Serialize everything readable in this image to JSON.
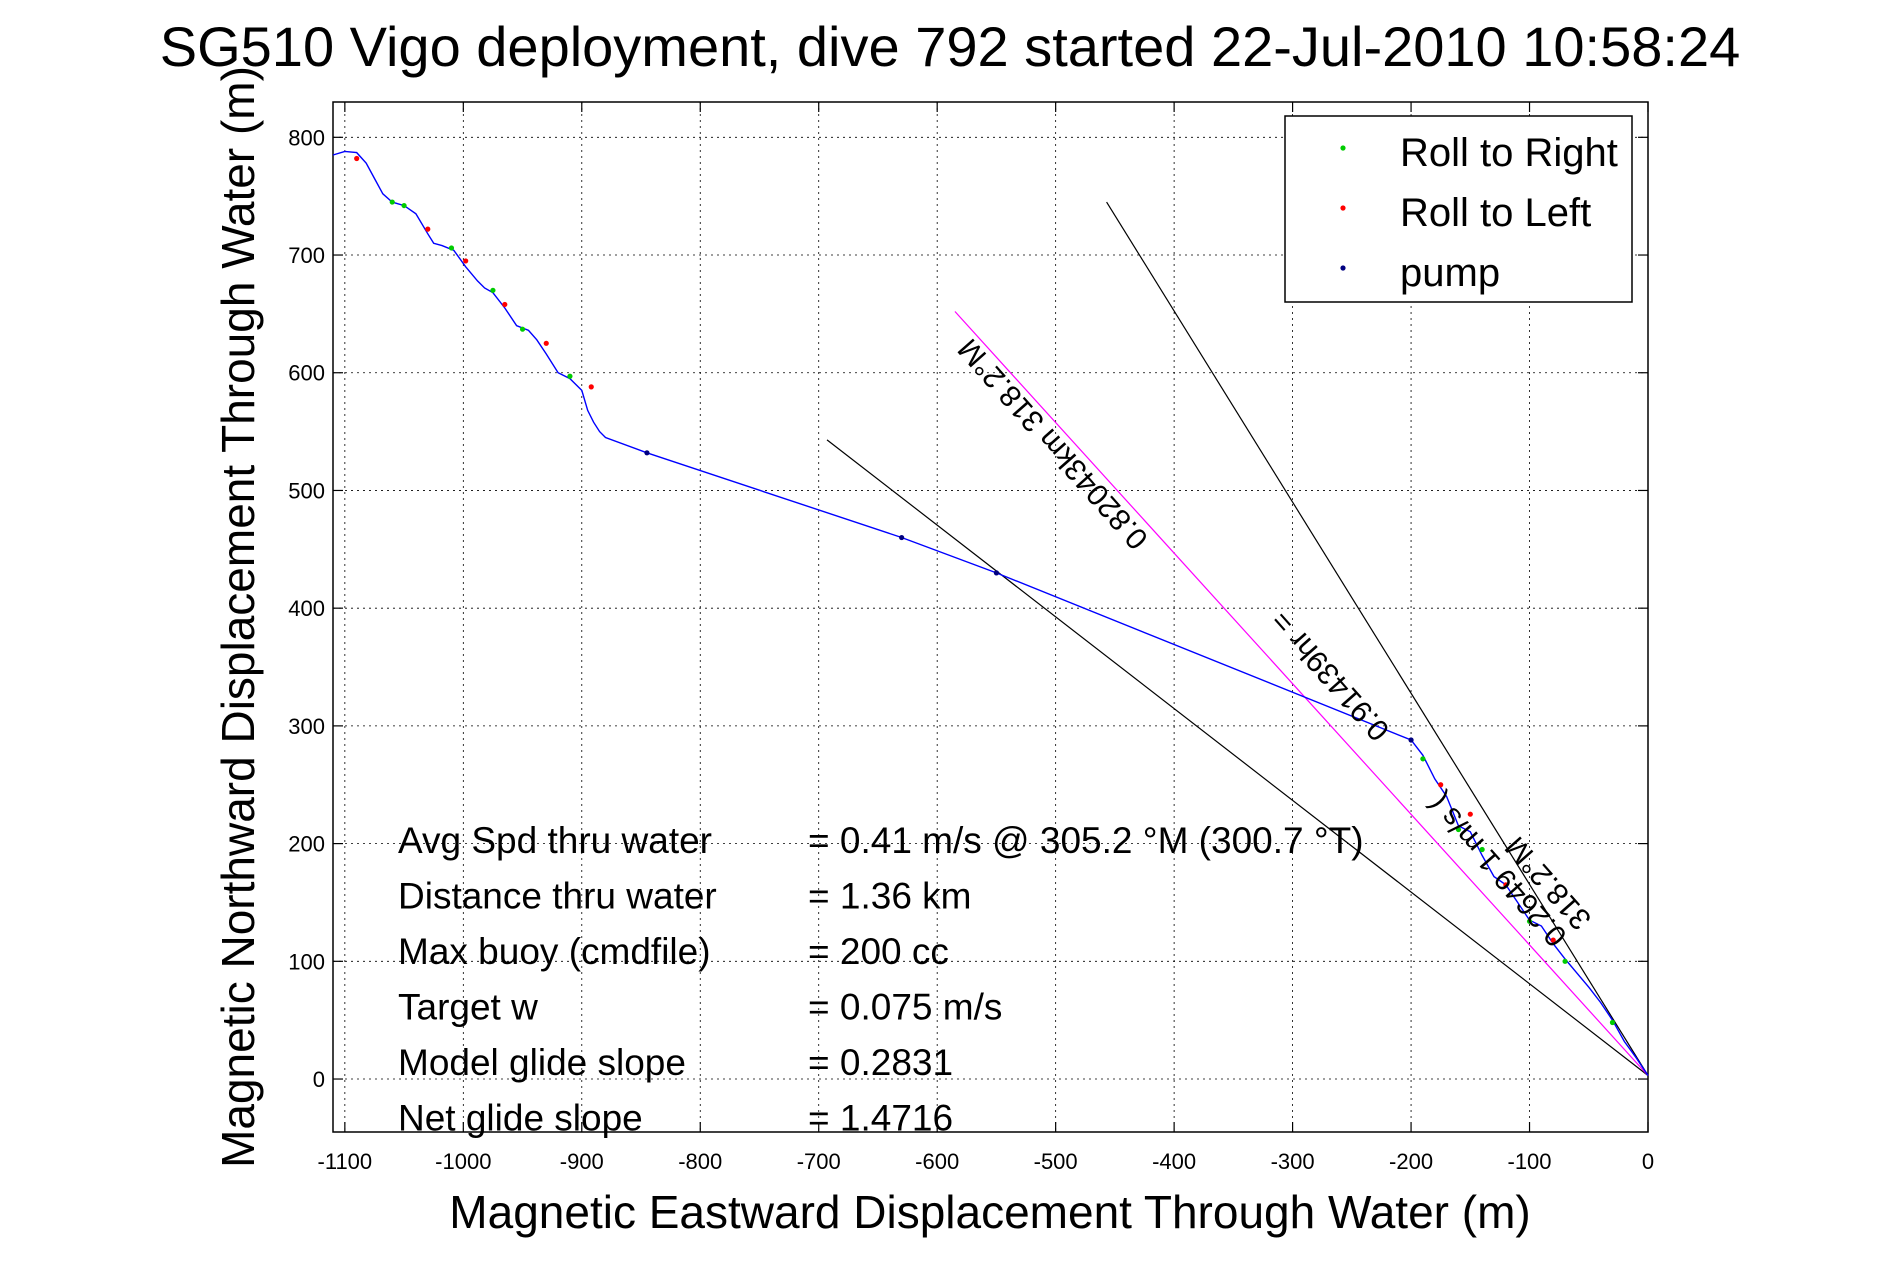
{
  "chart_data": {
    "type": "line",
    "title": "SG510 Vigo deployment, dive 792 started 22-Jul-2010 10:58:24",
    "xlabel": "Magnetic Eastward Displacement Through Water (m)",
    "ylabel": "Magnetic Northward Displacement Through Water (m)",
    "xlim": [
      -1110,
      0
    ],
    "ylim": [
      -45,
      830
    ],
    "xticks": [
      -1100,
      -1000,
      -900,
      -800,
      -700,
      -600,
      -500,
      -400,
      -300,
      -200,
      -100,
      0
    ],
    "xtick_labels": [
      "-1100",
      "-1000",
      "-900",
      "-800",
      "-700",
      "-600",
      "-500",
      "-400",
      "-300",
      "-200",
      "-100",
      "0"
    ],
    "yticks": [
      0,
      100,
      200,
      300,
      400,
      500,
      600,
      700,
      800
    ],
    "ytick_labels": [
      "0",
      "100",
      "200",
      "300",
      "400",
      "500",
      "600",
      "700",
      "800"
    ],
    "grid": true,
    "legend_position": "top-right",
    "legend": [
      {
        "label": "Roll to Right",
        "color": "#00cc00"
      },
      {
        "label": "Roll to Left",
        "color": "#ff0000"
      },
      {
        "label": "pump",
        "color": "#000080"
      }
    ],
    "track": {
      "name": "track",
      "color": "#0000ff",
      "x": [
        -1110,
        -1100,
        -1090,
        -1082,
        -1075,
        -1068,
        -1060,
        -1050,
        -1040,
        -1030,
        -1025,
        -1018,
        -1008,
        -998,
        -988,
        -982,
        -975,
        -965,
        -955,
        -945,
        -938,
        -930,
        -920,
        -910,
        -900,
        -895,
        -890,
        -885,
        -880,
        -845,
        -630,
        -550,
        -200,
        -190,
        -180,
        -170,
        -160,
        -150,
        -140,
        -130,
        -120,
        -110,
        -100,
        -90,
        -80,
        -70,
        -60,
        -50,
        -40,
        -30,
        -20,
        -10,
        0
      ],
      "y": [
        785,
        788,
        787,
        778,
        765,
        752,
        745,
        742,
        735,
        718,
        710,
        708,
        704,
        690,
        678,
        672,
        668,
        655,
        640,
        636,
        628,
        616,
        600,
        595,
        585,
        568,
        558,
        550,
        545,
        532,
        460,
        430,
        288,
        275,
        255,
        240,
        215,
        210,
        190,
        172,
        165,
        150,
        135,
        130,
        115,
        102,
        90,
        78,
        65,
        50,
        32,
        18,
        3
      ]
    },
    "pump_points": {
      "color": "#000080",
      "x": [
        -845,
        -630,
        -550,
        -200
      ],
      "y": [
        532,
        460,
        430,
        288
      ]
    },
    "roll_right_points": {
      "color": "#00cc00",
      "x": [
        -1060,
        -1050,
        -1010,
        -975,
        -950,
        -910,
        -190,
        -160,
        -140,
        -100,
        -70,
        -30
      ],
      "y": [
        745,
        742,
        706,
        670,
        637,
        597,
        272,
        212,
        195,
        134,
        100,
        48
      ]
    },
    "roll_left_points": {
      "color": "#ff0000",
      "x": [
        -1090,
        -1030,
        -998,
        -965,
        -930,
        -892,
        -175,
        -150,
        -120,
        -80
      ],
      "y": [
        782,
        722,
        695,
        658,
        625,
        588,
        250,
        225,
        165,
        118
      ]
    },
    "reference_lines": [
      {
        "name": "roll-heading-line",
        "color": "#000000",
        "x": [
          -457,
          0
        ],
        "y": [
          745,
          3
        ]
      },
      {
        "name": "lower-heading-line",
        "color": "#000000",
        "x": [
          -693,
          0
        ],
        "y": [
          543,
          3
        ]
      },
      {
        "name": "current-line",
        "color": "#ff00ff",
        "x": [
          -585,
          0
        ],
        "y": [
          652,
          3
        ]
      }
    ],
    "annotations": [
      {
        "text": "0.82043km 318.2°M",
        "x": -496,
        "y": 545
      },
      {
        "text": "0.91439hr =",
        "x": -262,
        "y": 348
      },
      {
        "text": "0.2649 1 m/s (",
        "x": -121,
        "y": 183
      },
      {
        "text": "318.2°M",
        "x": -78,
        "y": 172
      }
    ],
    "stats": [
      {
        "label": "Avg Spd thru water",
        "value": "=  0.41 m/s @ 305.2 °M (300.7 °T)"
      },
      {
        "label": "Distance thru water",
        "value": "=  1.36 km"
      },
      {
        "label": "Max buoy (cmdfile)",
        "value": "= 200 cc"
      },
      {
        "label": "Target w",
        "value": "= 0.075 m/s"
      },
      {
        "label": "Model glide slope",
        "value": "= 0.2831"
      },
      {
        "label": "Net glide slope",
        "value": "= 1.4716"
      }
    ]
  }
}
